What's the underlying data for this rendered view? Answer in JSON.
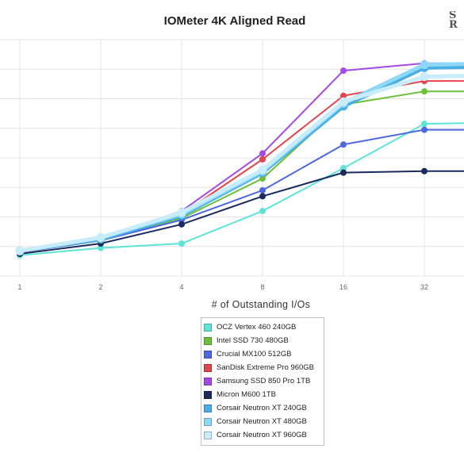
{
  "chart_data": {
    "type": "line",
    "title": "IOMeter 4K Aligned Read",
    "xlabel": "# of Outstanding I/Os",
    "ylabel": "",
    "x": [
      1,
      2,
      4,
      8,
      16,
      32,
      64
    ],
    "x_tick_labels": [
      "1",
      "2",
      "4",
      "8",
      "16",
      "32"
    ],
    "x_scale": "log2",
    "grid": true,
    "legend_placement": "bottom-center",
    "series": [
      {
        "name": "OCZ Vertex 460 240GB",
        "color": "#5ee3d7",
        "values": [
          7,
          9.5,
          11,
          22,
          36.5,
          51.5,
          52
        ]
      },
      {
        "name": "Intel SSD 730 480GB",
        "color": "#6dc03a",
        "values": [
          8,
          12,
          19.5,
          33,
          58,
          62.5,
          62.5
        ]
      },
      {
        "name": "Crucial MX100 512GB",
        "color": "#4f68e0",
        "values": [
          8,
          12,
          19,
          29,
          44.5,
          49.5,
          49.5
        ]
      },
      {
        "name": "SanDisk Extreme Pro 960GB",
        "color": "#e3454c",
        "values": [
          8,
          12.5,
          21,
          39.5,
          61,
          66,
          66
        ]
      },
      {
        "name": "Samsung SSD 850 Pro 1TB",
        "color": "#a449e3",
        "values": [
          8,
          13,
          22,
          41.5,
          69.5,
          72,
          72
        ]
      },
      {
        "name": "Micron M600 1TB",
        "color": "#1a2a5e",
        "values": [
          7.5,
          11,
          17.5,
          27,
          35,
          35.5,
          35.5
        ]
      },
      {
        "name": "Corsair Neutron XT 240GB",
        "color": "#4aaee3",
        "values": [
          8.5,
          12.5,
          20.5,
          35,
          57.5,
          70.5,
          71
        ]
      },
      {
        "name": "Corsair Neutron XT 480GB",
        "color": "#8ed8f7",
        "values": [
          8.5,
          13,
          21,
          35.5,
          58.5,
          71.5,
          72
        ]
      },
      {
        "name": "Corsair Neutron XT 960GB",
        "color": "#c9ecfb",
        "values": [
          8.5,
          13,
          21.5,
          36,
          59,
          67.5,
          68
        ]
      }
    ]
  }
}
